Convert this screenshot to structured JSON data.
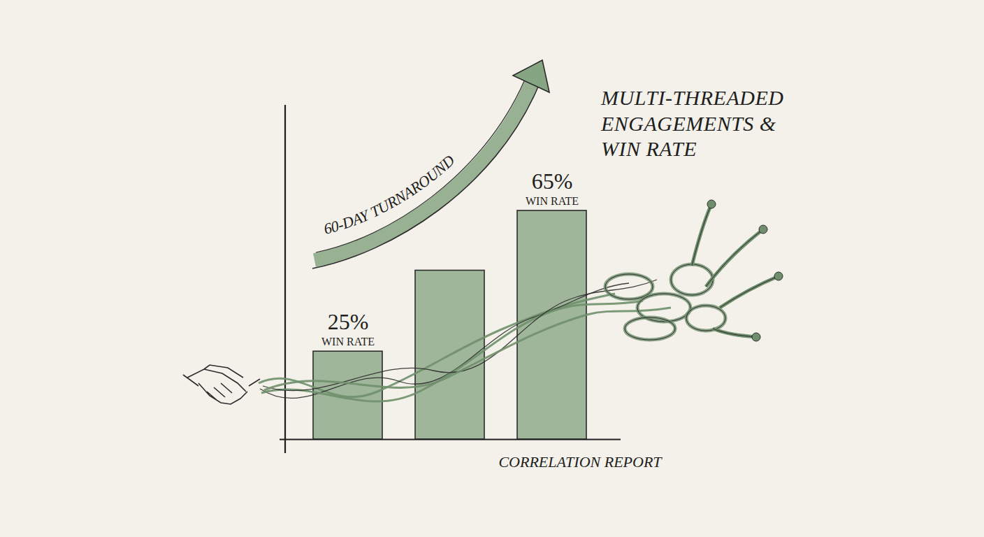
{
  "chart_data": {
    "type": "bar",
    "title": "MULTI-THREADED ENGAGEMENTS & WIN RATE",
    "x_label": "CORRELATION REPORT",
    "annotations": [
      "60-DAY TURNAROUND"
    ],
    "categories": [
      null,
      null,
      null
    ],
    "values": [
      25,
      48,
      65
    ],
    "value_labels": [
      "25%",
      null,
      "65%"
    ],
    "value_label_captions": [
      "WIN RATE",
      null,
      "WIN RATE"
    ],
    "color": "#7fa07c",
    "ylim": [
      0,
      95
    ],
    "yticks": [],
    "tick_labels": false,
    "data_labels": true,
    "grid": false
  }
}
